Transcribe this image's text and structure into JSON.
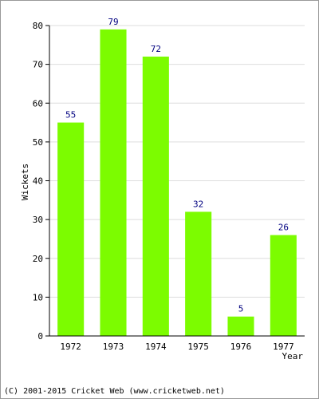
{
  "chart_data": {
    "type": "bar",
    "categories": [
      "1972",
      "1973",
      "1974",
      "1975",
      "1976",
      "1977"
    ],
    "values": [
      55,
      79,
      72,
      32,
      5,
      26
    ],
    "xlabel": "Year",
    "ylabel": "Wickets",
    "ylim": [
      0,
      80
    ],
    "yticks": [
      0,
      10,
      20,
      30,
      40,
      50,
      60,
      70,
      80
    ],
    "grid": true,
    "bar_color": "#7cfc00",
    "label_color": "#000080"
  },
  "footer": {
    "copyright": "(C) 2001-2015 Cricket Web (www.cricketweb.net)"
  }
}
